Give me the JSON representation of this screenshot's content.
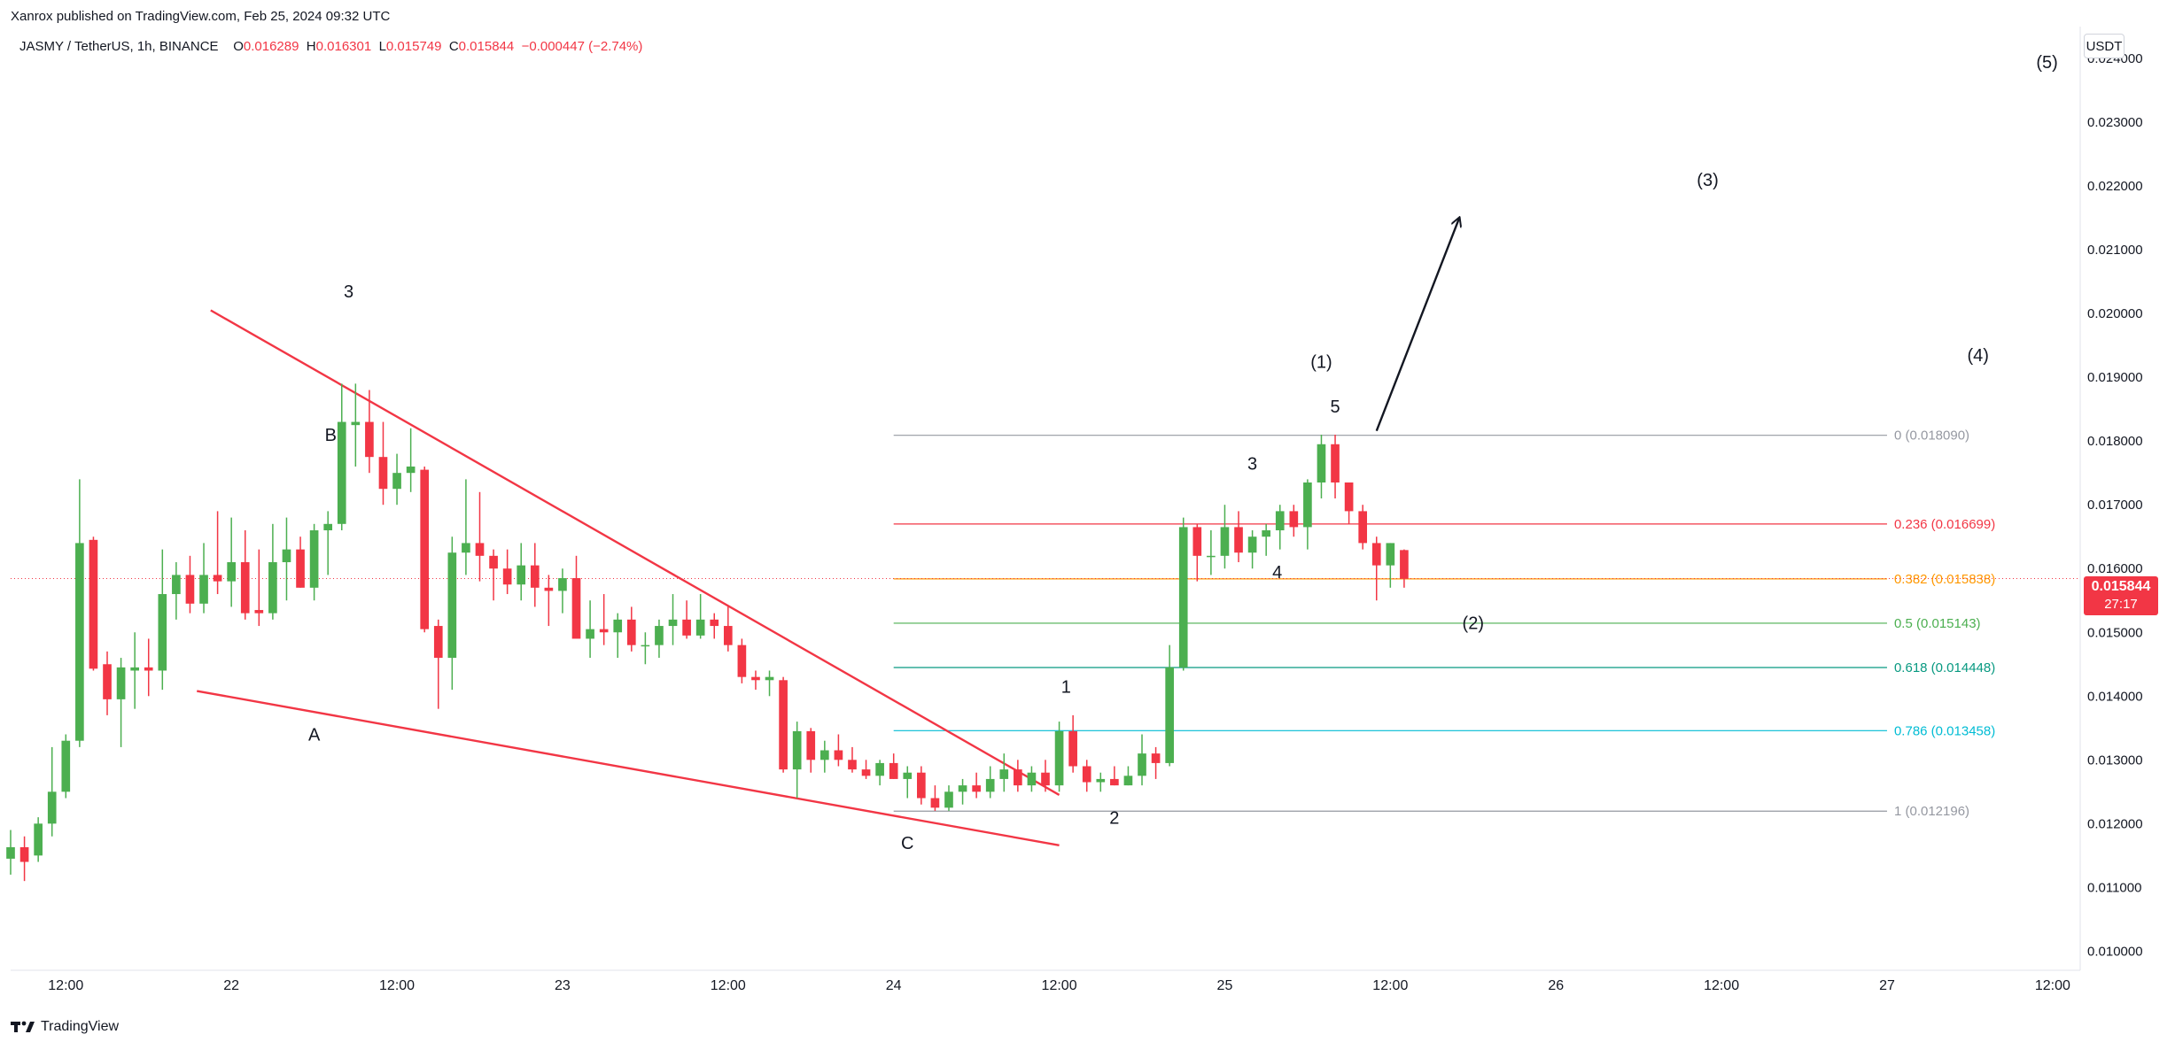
{
  "header": {
    "published": "Xanrox published on TradingView.com, Feb 25, 2024 09:32 UTC",
    "symbol": "JASMY / TetherUS, 1h, BINANCE",
    "ohlc": {
      "o_label": "O",
      "o": "0.016289",
      "h_label": "H",
      "h": "0.016301",
      "l_label": "L",
      "l": "0.015749",
      "c_label": "C",
      "c": "0.015844",
      "change": "−0.000447 (−2.74%)"
    }
  },
  "unit_label": "USDT",
  "last_price": {
    "value": "0.015844",
    "countdown": "27:17"
  },
  "footer": {
    "brand": "TradingView"
  },
  "colors": {
    "up": "#4caf50",
    "down": "#f23645",
    "trendline": "#f23645",
    "text": "#131722",
    "axis_text": "#131722"
  },
  "chart_data": {
    "type": "candlestick",
    "y_axis": {
      "ticks": [
        "0.024000",
        "0.023000",
        "0.022000",
        "0.021000",
        "0.020000",
        "0.019000",
        "0.018000",
        "0.017000",
        "0.016000",
        "0.015000",
        "0.014000",
        "0.013000",
        "0.012000",
        "0.011000",
        "0.010000"
      ],
      "range": [
        0.0097,
        0.0245
      ]
    },
    "x_axis": {
      "ticks": [
        {
          "label": "12:00",
          "t": 12
        },
        {
          "label": "22",
          "t": 24
        },
        {
          "label": "12:00",
          "t": 36
        },
        {
          "label": "23",
          "t": 48
        },
        {
          "label": "12:00",
          "t": 60
        },
        {
          "label": "24",
          "t": 72
        },
        {
          "label": "12:00",
          "t": 84
        },
        {
          "label": "25",
          "t": 96
        },
        {
          "label": "12:00",
          "t": 108
        },
        {
          "label": "26",
          "t": 120
        },
        {
          "label": "12:00",
          "t": 132
        },
        {
          "label": "27",
          "t": 144
        },
        {
          "label": "12:00",
          "t": 156
        }
      ],
      "range": [
        8,
        158
      ]
    },
    "candles": [
      {
        "t": 8,
        "o": 0.01145,
        "h": 0.0119,
        "l": 0.0112,
        "c": 0.01163
      },
      {
        "t": 9,
        "o": 0.01163,
        "h": 0.0118,
        "l": 0.0111,
        "c": 0.0114
      },
      {
        "t": 10,
        "o": 0.0115,
        "h": 0.0121,
        "l": 0.0114,
        "c": 0.012
      },
      {
        "t": 11,
        "o": 0.012,
        "h": 0.0132,
        "l": 0.0118,
        "c": 0.0125
      },
      {
        "t": 12,
        "o": 0.0125,
        "h": 0.0134,
        "l": 0.0124,
        "c": 0.0133
      },
      {
        "t": 13,
        "o": 0.0133,
        "h": 0.0174,
        "l": 0.0132,
        "c": 0.0164
      },
      {
        "t": 14,
        "o": 0.01645,
        "h": 0.0165,
        "l": 0.0144,
        "c": 0.01443
      },
      {
        "t": 15,
        "o": 0.0145,
        "h": 0.0147,
        "l": 0.0137,
        "c": 0.01395
      },
      {
        "t": 16,
        "o": 0.01395,
        "h": 0.0146,
        "l": 0.0132,
        "c": 0.01445
      },
      {
        "t": 17,
        "o": 0.0144,
        "h": 0.015,
        "l": 0.0138,
        "c": 0.01445
      },
      {
        "t": 18,
        "o": 0.01445,
        "h": 0.0149,
        "l": 0.014,
        "c": 0.0144
      },
      {
        "t": 19,
        "o": 0.0144,
        "h": 0.0163,
        "l": 0.0141,
        "c": 0.0156
      },
      {
        "t": 20,
        "o": 0.0156,
        "h": 0.0161,
        "l": 0.0152,
        "c": 0.0159
      },
      {
        "t": 21,
        "o": 0.0159,
        "h": 0.0162,
        "l": 0.0153,
        "c": 0.01545
      },
      {
        "t": 22,
        "o": 0.01545,
        "h": 0.0164,
        "l": 0.0153,
        "c": 0.0159
      },
      {
        "t": 23,
        "o": 0.0159,
        "h": 0.0169,
        "l": 0.0156,
        "c": 0.0158
      },
      {
        "t": 24,
        "o": 0.0158,
        "h": 0.0168,
        "l": 0.0154,
        "c": 0.0161
      },
      {
        "t": 25,
        "o": 0.0161,
        "h": 0.0166,
        "l": 0.0152,
        "c": 0.0153
      },
      {
        "t": 26,
        "o": 0.01535,
        "h": 0.0163,
        "l": 0.0151,
        "c": 0.0153
      },
      {
        "t": 27,
        "o": 0.0153,
        "h": 0.0167,
        "l": 0.0152,
        "c": 0.0161
      },
      {
        "t": 28,
        "o": 0.0161,
        "h": 0.0168,
        "l": 0.0155,
        "c": 0.0163
      },
      {
        "t": 29,
        "o": 0.0163,
        "h": 0.0165,
        "l": 0.0157,
        "c": 0.0157
      },
      {
        "t": 30,
        "o": 0.0157,
        "h": 0.0167,
        "l": 0.0155,
        "c": 0.0166
      },
      {
        "t": 31,
        "o": 0.0166,
        "h": 0.0169,
        "l": 0.0159,
        "c": 0.0167
      },
      {
        "t": 32,
        "o": 0.0167,
        "h": 0.0189,
        "l": 0.0166,
        "c": 0.0183
      },
      {
        "t": 33,
        "o": 0.01825,
        "h": 0.0189,
        "l": 0.0176,
        "c": 0.0183
      },
      {
        "t": 34,
        "o": 0.0183,
        "h": 0.0188,
        "l": 0.0175,
        "c": 0.01775
      },
      {
        "t": 35,
        "o": 0.01775,
        "h": 0.0183,
        "l": 0.017,
        "c": 0.01725
      },
      {
        "t": 36,
        "o": 0.01725,
        "h": 0.0178,
        "l": 0.017,
        "c": 0.0175
      },
      {
        "t": 37,
        "o": 0.0175,
        "h": 0.0182,
        "l": 0.0172,
        "c": 0.0176
      },
      {
        "t": 38,
        "o": 0.01755,
        "h": 0.0176,
        "l": 0.015,
        "c": 0.01505
      },
      {
        "t": 39,
        "o": 0.0151,
        "h": 0.0152,
        "l": 0.0138,
        "c": 0.0146
      },
      {
        "t": 40,
        "o": 0.0146,
        "h": 0.0165,
        "l": 0.0141,
        "c": 0.01625
      },
      {
        "t": 41,
        "o": 0.01625,
        "h": 0.0174,
        "l": 0.0159,
        "c": 0.0164
      },
      {
        "t": 42,
        "o": 0.0164,
        "h": 0.0172,
        "l": 0.0158,
        "c": 0.0162
      },
      {
        "t": 43,
        "o": 0.0162,
        "h": 0.0163,
        "l": 0.0155,
        "c": 0.016
      },
      {
        "t": 44,
        "o": 0.016,
        "h": 0.0163,
        "l": 0.0156,
        "c": 0.01575
      },
      {
        "t": 45,
        "o": 0.01575,
        "h": 0.0164,
        "l": 0.0155,
        "c": 0.01605
      },
      {
        "t": 46,
        "o": 0.01605,
        "h": 0.0164,
        "l": 0.0154,
        "c": 0.0157
      },
      {
        "t": 47,
        "o": 0.0157,
        "h": 0.0159,
        "l": 0.0151,
        "c": 0.01565
      },
      {
        "t": 48,
        "o": 0.01565,
        "h": 0.016,
        "l": 0.0153,
        "c": 0.01585
      },
      {
        "t": 49,
        "o": 0.01585,
        "h": 0.0162,
        "l": 0.015,
        "c": 0.0149
      },
      {
        "t": 50,
        "o": 0.0149,
        "h": 0.0155,
        "l": 0.0146,
        "c": 0.01505
      },
      {
        "t": 51,
        "o": 0.01505,
        "h": 0.0156,
        "l": 0.0148,
        "c": 0.015
      },
      {
        "t": 52,
        "o": 0.015,
        "h": 0.0153,
        "l": 0.0146,
        "c": 0.0152
      },
      {
        "t": 53,
        "o": 0.0152,
        "h": 0.0154,
        "l": 0.0147,
        "c": 0.0148
      },
      {
        "t": 54,
        "o": 0.0148,
        "h": 0.015,
        "l": 0.0145,
        "c": 0.0148
      },
      {
        "t": 55,
        "o": 0.0148,
        "h": 0.0152,
        "l": 0.0146,
        "c": 0.0151
      },
      {
        "t": 56,
        "o": 0.0151,
        "h": 0.0156,
        "l": 0.0148,
        "c": 0.0152
      },
      {
        "t": 57,
        "o": 0.0152,
        "h": 0.0155,
        "l": 0.0149,
        "c": 0.01495
      },
      {
        "t": 58,
        "o": 0.01495,
        "h": 0.0156,
        "l": 0.0149,
        "c": 0.0152
      },
      {
        "t": 59,
        "o": 0.0152,
        "h": 0.0153,
        "l": 0.0149,
        "c": 0.0151
      },
      {
        "t": 60,
        "o": 0.0151,
        "h": 0.0154,
        "l": 0.0147,
        "c": 0.0148
      },
      {
        "t": 61,
        "o": 0.0148,
        "h": 0.0149,
        "l": 0.0142,
        "c": 0.0143
      },
      {
        "t": 62,
        "o": 0.0143,
        "h": 0.0144,
        "l": 0.0141,
        "c": 0.01425
      },
      {
        "t": 63,
        "o": 0.01425,
        "h": 0.0144,
        "l": 0.014,
        "c": 0.0143
      },
      {
        "t": 64,
        "o": 0.01425,
        "h": 0.0143,
        "l": 0.0128,
        "c": 0.01285
      },
      {
        "t": 65,
        "o": 0.01285,
        "h": 0.0136,
        "l": 0.0124,
        "c": 0.01345
      },
      {
        "t": 66,
        "o": 0.01345,
        "h": 0.0135,
        "l": 0.0128,
        "c": 0.013
      },
      {
        "t": 67,
        "o": 0.013,
        "h": 0.0133,
        "l": 0.0128,
        "c": 0.01315
      },
      {
        "t": 68,
        "o": 0.01315,
        "h": 0.0134,
        "l": 0.0129,
        "c": 0.013
      },
      {
        "t": 69,
        "o": 0.013,
        "h": 0.0132,
        "l": 0.0128,
        "c": 0.01285
      },
      {
        "t": 70,
        "o": 0.01285,
        "h": 0.013,
        "l": 0.0127,
        "c": 0.01275
      },
      {
        "t": 71,
        "o": 0.01275,
        "h": 0.013,
        "l": 0.0126,
        "c": 0.01295
      },
      {
        "t": 72,
        "o": 0.01295,
        "h": 0.0131,
        "l": 0.0127,
        "c": 0.0127
      },
      {
        "t": 73,
        "o": 0.0127,
        "h": 0.0129,
        "l": 0.0124,
        "c": 0.0128
      },
      {
        "t": 74,
        "o": 0.0128,
        "h": 0.0129,
        "l": 0.0123,
        "c": 0.0124
      },
      {
        "t": 75,
        "o": 0.0124,
        "h": 0.0126,
        "l": 0.0122,
        "c": 0.01225
      },
      {
        "t": 76,
        "o": 0.01225,
        "h": 0.0126,
        "l": 0.0122,
        "c": 0.0125
      },
      {
        "t": 77,
        "o": 0.0125,
        "h": 0.0127,
        "l": 0.0123,
        "c": 0.0126
      },
      {
        "t": 78,
        "o": 0.0126,
        "h": 0.0128,
        "l": 0.0124,
        "c": 0.0125
      },
      {
        "t": 79,
        "o": 0.0125,
        "h": 0.0129,
        "l": 0.0124,
        "c": 0.0127
      },
      {
        "t": 80,
        "o": 0.0127,
        "h": 0.0131,
        "l": 0.0125,
        "c": 0.01285
      },
      {
        "t": 81,
        "o": 0.01285,
        "h": 0.013,
        "l": 0.0125,
        "c": 0.0126
      },
      {
        "t": 82,
        "o": 0.0126,
        "h": 0.0129,
        "l": 0.0125,
        "c": 0.0128
      },
      {
        "t": 83,
        "o": 0.0128,
        "h": 0.013,
        "l": 0.0125,
        "c": 0.0126
      },
      {
        "t": 84,
        "o": 0.0126,
        "h": 0.0136,
        "l": 0.0125,
        "c": 0.01345
      },
      {
        "t": 85,
        "o": 0.01345,
        "h": 0.0137,
        "l": 0.0128,
        "c": 0.0129
      },
      {
        "t": 86,
        "o": 0.0129,
        "h": 0.013,
        "l": 0.0125,
        "c": 0.01265
      },
      {
        "t": 87,
        "o": 0.01265,
        "h": 0.0128,
        "l": 0.0125,
        "c": 0.0127
      },
      {
        "t": 88,
        "o": 0.0127,
        "h": 0.0129,
        "l": 0.0126,
        "c": 0.0126
      },
      {
        "t": 89,
        "o": 0.0126,
        "h": 0.0129,
        "l": 0.0126,
        "c": 0.01275
      },
      {
        "t": 90,
        "o": 0.01275,
        "h": 0.0134,
        "l": 0.0126,
        "c": 0.0131
      },
      {
        "t": 91,
        "o": 0.0131,
        "h": 0.0132,
        "l": 0.0127,
        "c": 0.01295
      },
      {
        "t": 92,
        "o": 0.01295,
        "h": 0.0148,
        "l": 0.0129,
        "c": 0.01445
      },
      {
        "t": 93,
        "o": 0.01445,
        "h": 0.0168,
        "l": 0.0144,
        "c": 0.01665
      },
      {
        "t": 94,
        "o": 0.01665,
        "h": 0.0167,
        "l": 0.0158,
        "c": 0.0162
      },
      {
        "t": 95,
        "o": 0.0162,
        "h": 0.0166,
        "l": 0.0159,
        "c": 0.0162
      },
      {
        "t": 96,
        "o": 0.0162,
        "h": 0.017,
        "l": 0.016,
        "c": 0.01665
      },
      {
        "t": 97,
        "o": 0.01665,
        "h": 0.0169,
        "l": 0.0161,
        "c": 0.01625
      },
      {
        "t": 98,
        "o": 0.01625,
        "h": 0.0166,
        "l": 0.016,
        "c": 0.0165
      },
      {
        "t": 99,
        "o": 0.0165,
        "h": 0.0167,
        "l": 0.0162,
        "c": 0.0166
      },
      {
        "t": 100,
        "o": 0.0166,
        "h": 0.017,
        "l": 0.0163,
        "c": 0.0169
      },
      {
        "t": 101,
        "o": 0.0169,
        "h": 0.017,
        "l": 0.0165,
        "c": 0.01665
      },
      {
        "t": 102,
        "o": 0.01665,
        "h": 0.0174,
        "l": 0.0163,
        "c": 0.01735
      },
      {
        "t": 103,
        "o": 0.01735,
        "h": 0.0181,
        "l": 0.0171,
        "c": 0.01795
      },
      {
        "t": 104,
        "o": 0.01795,
        "h": 0.0181,
        "l": 0.0171,
        "c": 0.01735
      },
      {
        "t": 105,
        "o": 0.01735,
        "h": 0.0173,
        "l": 0.0167,
        "c": 0.0169
      },
      {
        "t": 106,
        "o": 0.0169,
        "h": 0.017,
        "l": 0.0163,
        "c": 0.0164
      },
      {
        "t": 107,
        "o": 0.0164,
        "h": 0.0165,
        "l": 0.0155,
        "c": 0.01605
      },
      {
        "t": 108,
        "o": 0.01605,
        "h": 0.0164,
        "l": 0.0157,
        "c": 0.0164
      },
      {
        "t": 109,
        "o": 0.01629,
        "h": 0.0163,
        "l": 0.0157,
        "c": 0.01584
      }
    ],
    "trendlines": [
      {
        "from": {
          "t": 22.5,
          "v": 0.02005
        },
        "to": {
          "t": 84,
          "v": 0.01245
        }
      },
      {
        "from": {
          "t": 21.5,
          "v": 0.01408
        },
        "to": {
          "t": 84,
          "v": 0.01166
        }
      },
      {
        "from": {
          "t": 107,
          "v": 0.01816
        },
        "to": {
          "t": 113,
          "v": 0.0215
        },
        "arrow": true,
        "color": "#131722"
      }
    ],
    "fibonacci": {
      "t_start": 72,
      "t_end": 144,
      "levels": [
        {
          "label": "0 (0.018090)",
          "v": 0.01809,
          "color": "#9598a1"
        },
        {
          "label": "0.236 (0.016699)",
          "v": 0.016699,
          "color": "#f23645"
        },
        {
          "label": "0.382 (0.015838)",
          "v": 0.015838,
          "color": "#ff9800"
        },
        {
          "label": "0.5 (0.015143)",
          "v": 0.015143,
          "color": "#4caf50"
        },
        {
          "label": "0.618 (0.014448)",
          "v": 0.014448,
          "color": "#089981"
        },
        {
          "label": "0.786 (0.013458)",
          "v": 0.013458,
          "color": "#00bcd4"
        },
        {
          "label": "1 (0.012196)",
          "v": 0.012196,
          "color": "#9598a1"
        }
      ]
    },
    "annotations": [
      {
        "text": "3",
        "t": 32.5,
        "v": 0.02025
      },
      {
        "text": "B",
        "t": 31.2,
        "v": 0.018
      },
      {
        "text": "A",
        "t": 30,
        "v": 0.0133
      },
      {
        "text": "C",
        "t": 73,
        "v": 0.0116
      },
      {
        "text": "1",
        "t": 84.5,
        "v": 0.01405
      },
      {
        "text": "2",
        "t": 88,
        "v": 0.012
      },
      {
        "text": "3",
        "t": 98,
        "v": 0.01755
      },
      {
        "text": "4",
        "t": 99.8,
        "v": 0.01585
      },
      {
        "text": "5",
        "t": 104,
        "v": 0.01845
      },
      {
        "text": "(1)",
        "t": 103,
        "v": 0.01915
      },
      {
        "text": "(2)",
        "t": 114,
        "v": 0.01505
      },
      {
        "text": "(3)",
        "t": 131,
        "v": 0.022
      },
      {
        "text": "(4)",
        "t": 150.6,
        "v": 0.01925
      },
      {
        "text": "(5)",
        "t": 155.6,
        "v": 0.02385
      }
    ],
    "last_price": 0.015844
  }
}
